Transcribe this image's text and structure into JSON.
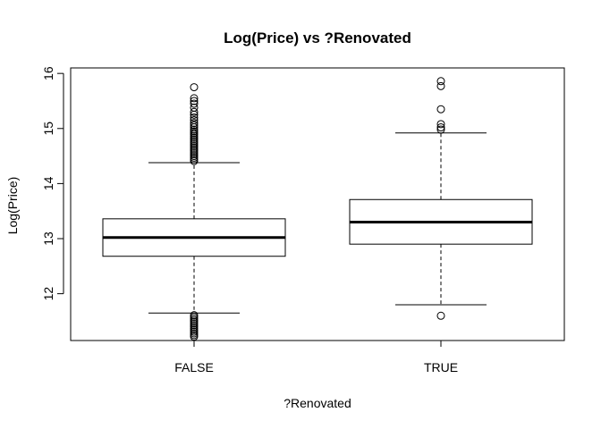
{
  "chart_data": {
    "type": "boxplot",
    "title": "Log(Price) vs ?Renovated",
    "xlabel": "?Renovated",
    "ylabel": "Log(Price)",
    "ylim": [
      11.15,
      16.1
    ],
    "y_ticks": [
      12,
      13,
      14,
      15,
      16
    ],
    "y_tick_labels": [
      "12",
      "13",
      "14",
      "15",
      "16"
    ],
    "categories": [
      "FALSE",
      "TRUE"
    ],
    "boxes": [
      {
        "category": "FALSE",
        "whisker_low": 11.65,
        "q1": 12.68,
        "median": 13.02,
        "q3": 13.36,
        "whisker_high": 14.38,
        "outliers": [
          11.22,
          11.25,
          11.28,
          11.31,
          11.34,
          11.37,
          11.4,
          11.43,
          11.46,
          11.49,
          11.52,
          11.55,
          11.58,
          11.61,
          14.41,
          14.44,
          14.47,
          14.5,
          14.53,
          14.56,
          14.59,
          14.62,
          14.65,
          14.68,
          14.71,
          14.74,
          14.77,
          14.8,
          14.83,
          14.86,
          14.89,
          14.92,
          14.95,
          14.98,
          15.02,
          15.06,
          15.1,
          15.15,
          15.2,
          15.25,
          15.3,
          15.38,
          15.45,
          15.5,
          15.55,
          15.75
        ]
      },
      {
        "category": "TRUE",
        "whisker_low": 11.8,
        "q1": 12.9,
        "median": 13.3,
        "q3": 13.71,
        "whisker_high": 14.92,
        "outliers": [
          11.6,
          14.98,
          15.02,
          15.08,
          15.35,
          15.77,
          15.86
        ]
      }
    ]
  }
}
